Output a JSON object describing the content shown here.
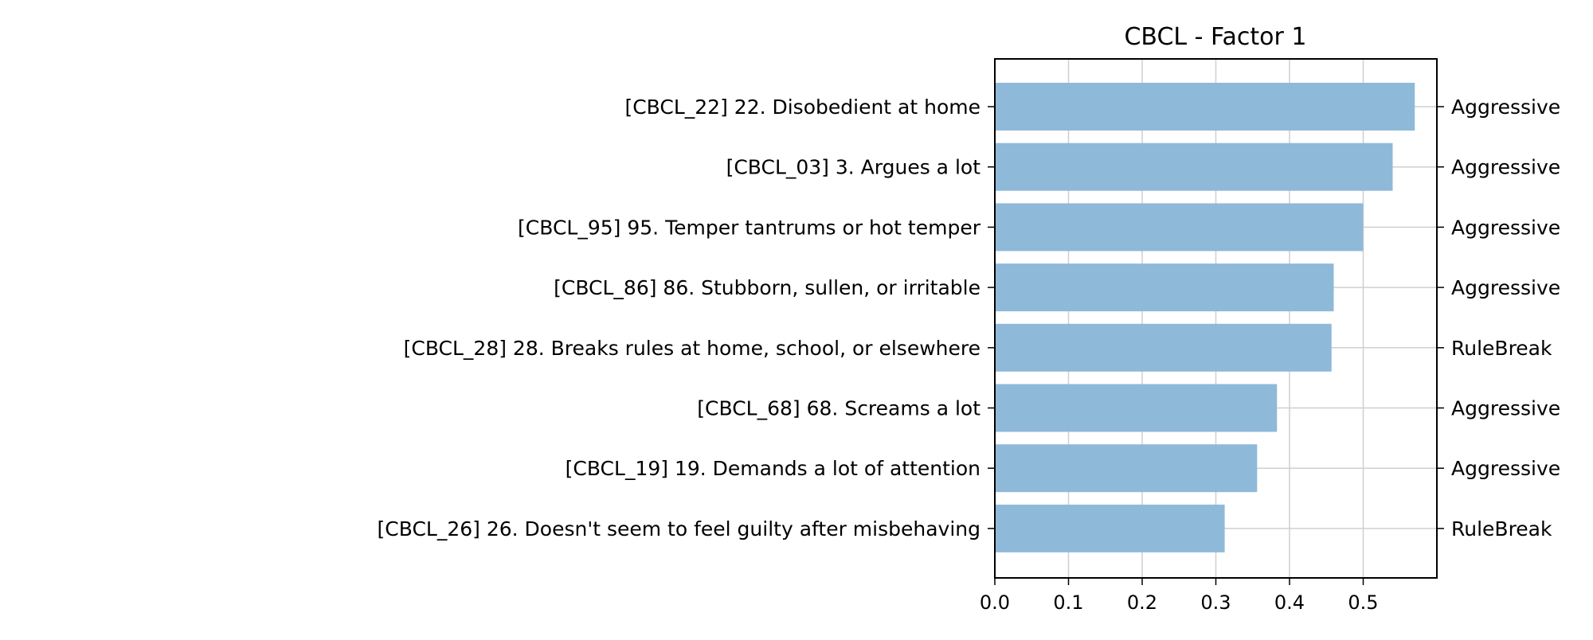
{
  "chart_data": {
    "type": "bar",
    "orientation": "horizontal",
    "title": "CBCL - Factor 1",
    "xlabel": "",
    "ylabel": "",
    "xlim": [
      0,
      0.6
    ],
    "xticks": [
      0.0,
      0.1,
      0.2,
      0.3,
      0.4,
      0.5
    ],
    "xtick_labels": [
      "0.0",
      "0.1",
      "0.2",
      "0.3",
      "0.4",
      "0.5"
    ],
    "grid": true,
    "bar_color": "#8fb9d9",
    "categories": [
      "[CBCL_22] 22. Disobedient at home",
      "[CBCL_03] 3. Argues a lot",
      "[CBCL_95] 95. Temper tantrums or hot temper",
      "[CBCL_86] 86. Stubborn, sullen, or irritable",
      "[CBCL_28] 28. Breaks rules at home, school, or elsewhere",
      "[CBCL_68] 68. Screams a lot",
      "[CBCL_19] 19. Demands a lot of attention",
      "[CBCL_26] 26. Doesn't seem to feel guilty after misbehaving"
    ],
    "values": [
      0.57,
      0.54,
      0.5,
      0.46,
      0.457,
      0.383,
      0.356,
      0.312
    ],
    "right_labels": [
      "Aggressive",
      "Aggressive",
      "Aggressive",
      "Aggressive",
      "RuleBreak",
      "Aggressive",
      "Aggressive",
      "RuleBreak"
    ]
  }
}
